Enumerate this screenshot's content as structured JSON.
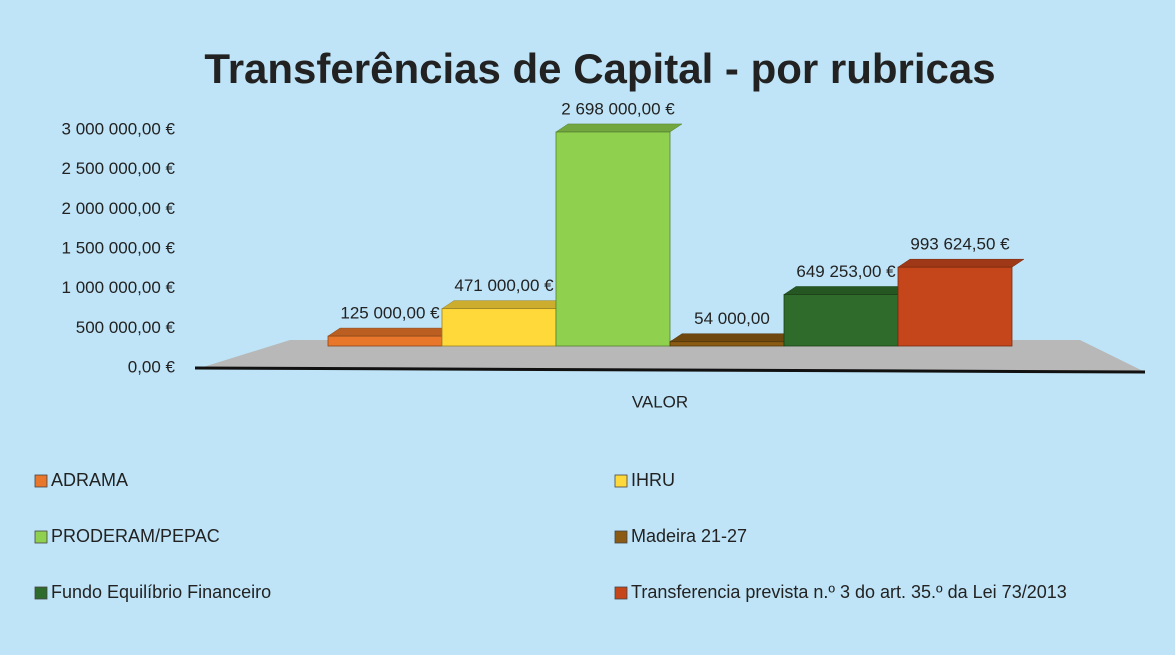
{
  "chart_data": {
    "type": "bar",
    "title": "Transferências de Capital - por rubricas",
    "categories": [
      "VALOR"
    ],
    "series": [
      {
        "name": "ADRAMA",
        "color": "#e8762b",
        "values": [
          125000
        ],
        "value_labels": [
          "125 000,00 €"
        ]
      },
      {
        "name": "IHRU",
        "color": "#ffd83a",
        "values": [
          471000
        ],
        "value_labels": [
          "471 000,00 €"
        ]
      },
      {
        "name": "PRODERAM/PEPAC",
        "color": "#8fd14f",
        "values": [
          2698000
        ],
        "value_labels": [
          "2 698 000,00 €"
        ]
      },
      {
        "name": "Madeira 21-27",
        "color": "#8b5a14",
        "values": [
          54000
        ],
        "value_labels": [
          "54 000,00"
        ]
      },
      {
        "name": "Fundo Equilíbrio Financeiro",
        "color": "#2f6b2a",
        "values": [
          649253
        ],
        "value_labels": [
          "649 253,00 €"
        ]
      },
      {
        "name": "Transferencia prevista n.º 3 do art. 35.º da Lei 73/2013",
        "color": "#c5461b",
        "values": [
          993624.5
        ],
        "value_labels": [
          "993 624,50 €"
        ]
      }
    ],
    "ylim": [
      0,
      3000000
    ],
    "yticks": [
      {
        "value": 0,
        "label": "0,00 €"
      },
      {
        "value": 500000,
        "label": "500 000,00 €"
      },
      {
        "value": 1000000,
        "label": "1 000 000,00 €"
      },
      {
        "value": 1500000,
        "label": "1 500 000,00 €"
      },
      {
        "value": 2000000,
        "label": "2 000 000,00 €"
      },
      {
        "value": 2500000,
        "label": "2 500 000,00 €"
      },
      {
        "value": 3000000,
        "label": "3 000 000,00 €"
      }
    ],
    "grid": false,
    "legend": "bottom"
  }
}
